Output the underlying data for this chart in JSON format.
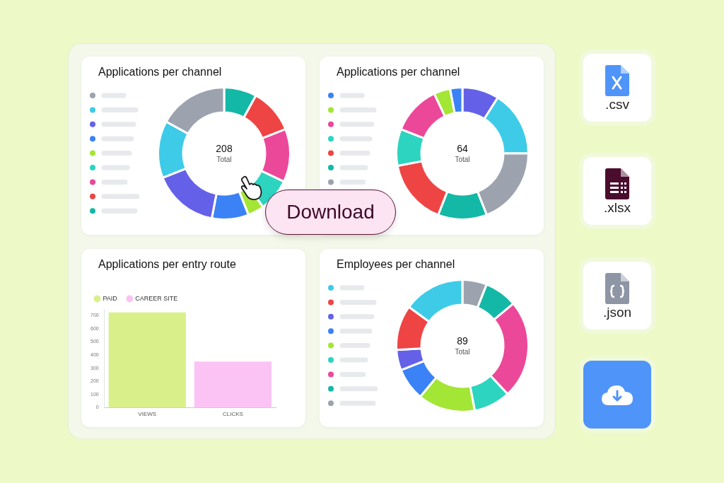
{
  "chart_data": [
    {
      "type": "donut",
      "title": "Applications per channel",
      "categories": [
        null,
        null,
        null,
        null,
        null,
        null,
        null,
        null,
        null
      ],
      "values": [
        8,
        11,
        13,
        8,
        4,
        9,
        16,
        14,
        17
      ],
      "colors": [
        "#14b8a6",
        "#ef4444",
        "#ec4899",
        "#2dd4bf",
        "#a3e635",
        "#3b82f6",
        "#6461e8",
        "#3ecbe8",
        "#9ca3af"
      ],
      "annotations": [
        "208",
        "Total"
      ]
    },
    {
      "type": "donut",
      "title": "Applications per channel",
      "categories": [
        null,
        null,
        null,
        null,
        null,
        null,
        null,
        null,
        null
      ],
      "values": [
        9,
        16,
        19,
        12,
        16,
        9,
        12,
        4,
        3
      ],
      "colors": [
        "#6461e8",
        "#3ecbe8",
        "#9ca3af",
        "#14b8a6",
        "#ef4444",
        "#2dd4bf",
        "#ec4899",
        "#a3e635",
        "#3b82f6"
      ],
      "annotations": [
        "64",
        "Total"
      ]
    },
    {
      "type": "bar",
      "title": "Applications per entry route",
      "categories": [
        "VIEWS",
        "CLICKS"
      ],
      "series": [
        {
          "name": "PAID",
          "color": "#d9f08a",
          "values": [
            725,
            null
          ]
        },
        {
          "name": "CAREER SITE",
          "color": "#fbc3f3",
          "values": [
            null,
            350
          ]
        }
      ],
      "ylim": [
        0,
        750
      ],
      "yticks": [
        0,
        100,
        200,
        300,
        400,
        500,
        600,
        700
      ],
      "legend": "top left"
    },
    {
      "type": "donut",
      "title": "Employees per channel",
      "categories": [
        null,
        null,
        null,
        null,
        null,
        null,
        null,
        null,
        null
      ],
      "values": [
        6,
        8,
        24,
        9,
        14,
        8,
        5,
        11,
        15
      ],
      "colors": [
        "#9ca3af",
        "#14b8a6",
        "#ec4899",
        "#2dd4bf",
        "#a3e635",
        "#3b82f6",
        "#6461e8",
        "#ef4444",
        "#3ecbe8"
      ],
      "annotations": [
        "89",
        "Total"
      ]
    },
    {
      "type": "other",
      "annotations": [
        "Download",
        ".csv",
        ".xlsx",
        ".json"
      ]
    }
  ]
}
